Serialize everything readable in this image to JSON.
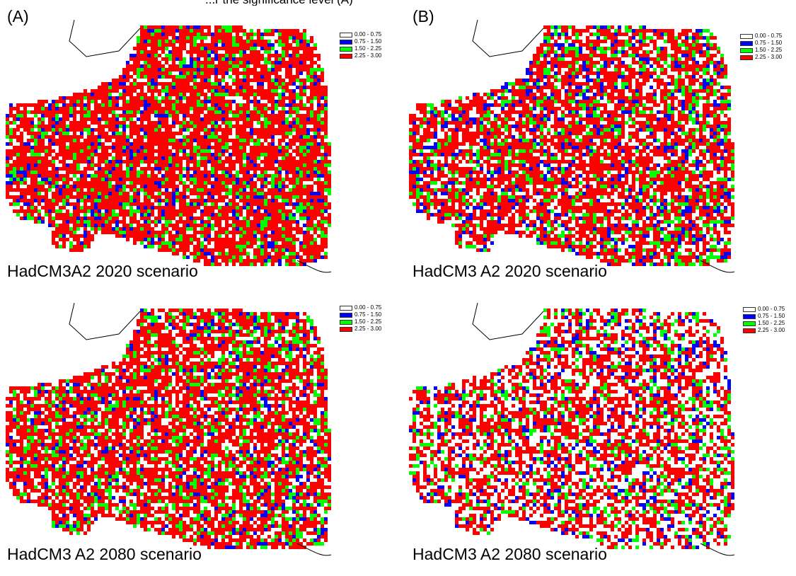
{
  "header_fragment": "...r the significance level (A)",
  "columns": [
    {
      "label": "(A)"
    },
    {
      "label": "(B)"
    }
  ],
  "legend": {
    "items": [
      {
        "label": "0.00 - 0.75",
        "color": "#ffffff"
      },
      {
        "label": "0.75 - 1.50",
        "color": "#0000ff"
      },
      {
        "label": "1.50 - 2.25",
        "color": "#00ff00"
      },
      {
        "label": "2.25 - 3.00",
        "color": "#ff0000"
      }
    ]
  },
  "panels": [
    {
      "caption": "HadCM3A2 2020 scenario",
      "weights": [
        0.14,
        0.1,
        0.16,
        0.6
      ]
    },
    {
      "caption": "HadCM3 A2 2020 scenario",
      "weights": [
        0.24,
        0.12,
        0.14,
        0.5
      ]
    },
    {
      "caption": "HadCM3 A2 2080 scenario",
      "weights": [
        0.22,
        0.08,
        0.15,
        0.55
      ]
    },
    {
      "caption": "HadCM3 A2 2080 scenario",
      "weights": [
        0.42,
        0.1,
        0.12,
        0.36
      ]
    }
  ]
}
